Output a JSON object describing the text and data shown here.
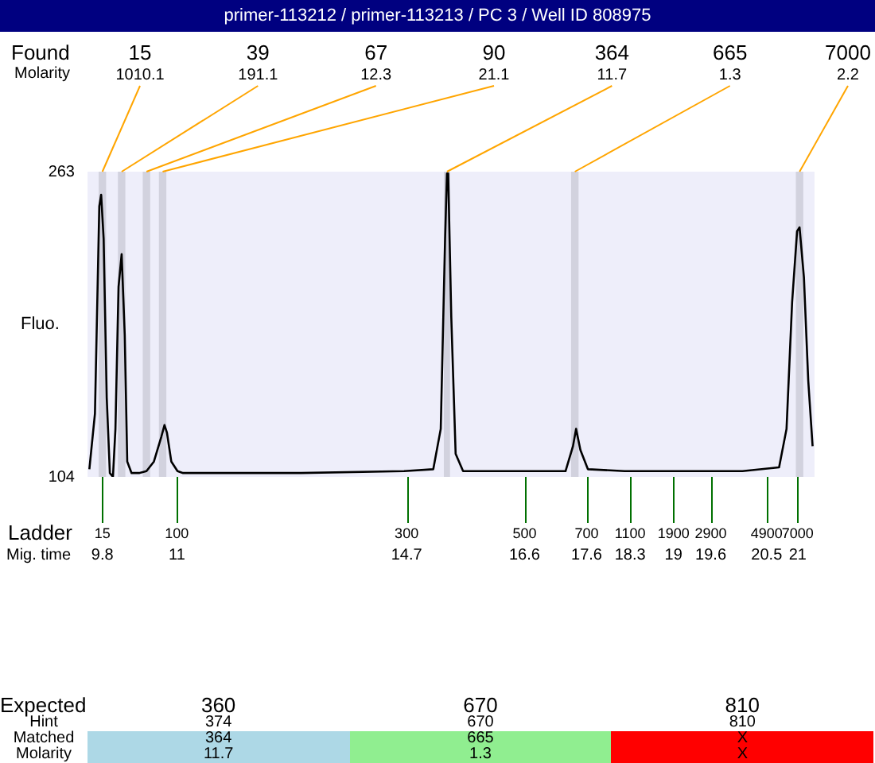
{
  "chart_data": [
    {
      "type": "line",
      "title": "primer-113212 / primer-113213 / PC 3 / Well ID 808975",
      "ylabel": "Fluo.",
      "xlabel": "Mig. time",
      "xlim": [
        9.56,
        21.27
      ],
      "xticks": [
        9.8,
        11,
        14.7,
        16.6,
        17.6,
        18.3,
        19,
        19.6,
        20.5,
        21
      ],
      "ylim": [
        104,
        263
      ],
      "yticks": [
        104,
        263
      ],
      "marker": "none",
      "series": [
        {
          "color": "#000000",
          "x": [
            9.59,
            9.68,
            9.75,
            9.78,
            9.82,
            9.87,
            9.92,
            9.97,
            10.01,
            10.06,
            10.11,
            10.16,
            10.2,
            10.27,
            10.39,
            10.51,
            10.63,
            10.75,
            10.8,
            10.84,
            10.91,
            11.01,
            11.1,
            11.58,
            13.0,
            14.66,
            15.13,
            15.25,
            15.32,
            15.35,
            15.37,
            15.42,
            15.49,
            15.61,
            16.55,
            17.26,
            17.38,
            17.43,
            17.5,
            17.62,
            18.21,
            20.11,
            20.7,
            20.82,
            20.91,
            20.99,
            21.03,
            21.1,
            21.17,
            21.24
          ],
          "values": [
            108,
            137,
            245,
            251,
            228,
            145,
            106,
            104,
            129,
            203,
            220,
            178,
            112,
            106,
            106,
            107,
            112,
            125,
            131,
            127,
            112,
            107,
            106,
            106,
            106,
            107,
            108,
            129,
            228,
            262,
            262,
            187,
            116,
            107,
            107,
            107,
            120,
            129,
            118,
            108,
            107,
            107,
            109,
            129,
            195,
            232,
            234,
            208,
            154,
            120
          ]
        }
      ],
      "bands": [
        {
          "axis": "x",
          "from": 9.74,
          "to": 9.86,
          "color": "#d2d2de"
        },
        {
          "axis": "x",
          "from": 10.05,
          "to": 10.17,
          "color": "#d2d2de"
        },
        {
          "axis": "x",
          "from": 10.45,
          "to": 10.57,
          "color": "#d2d2de"
        },
        {
          "axis": "x",
          "from": 10.71,
          "to": 10.83,
          "color": "#d2d2de"
        },
        {
          "axis": "x",
          "from": 15.3,
          "to": 15.4,
          "color": "#d2d2de"
        },
        {
          "axis": "x",
          "from": 17.35,
          "to": 17.47,
          "color": "#d2d2de"
        },
        {
          "axis": "x",
          "from": 20.97,
          "to": 21.09,
          "color": "#d2d2de"
        }
      ],
      "annotations": [
        "Found",
        "Molarity",
        "Ladder",
        "1010.1",
        "191.1",
        "12.3",
        "21.1",
        "11.7",
        "1.3",
        "2.2",
        {
          "text": "15",
          "x": 9.8,
          "y": 263
        },
        {
          "text": "39",
          "x": 10.11,
          "y": 263
        },
        {
          "text": "67",
          "x": 10.51,
          "y": 263
        },
        {
          "text": "90",
          "x": 10.77,
          "y": 263
        },
        {
          "text": "364",
          "x": 15.35,
          "y": 263
        },
        {
          "text": "665",
          "x": 17.41,
          "y": 263
        },
        {
          "text": "7000",
          "x": 21.03,
          "y": 263
        },
        {
          "text": "15",
          "x": 9.8,
          "y": 104
        },
        {
          "text": "100",
          "x": 11,
          "y": 104
        },
        {
          "text": "300",
          "x": 14.7,
          "y": 104
        },
        {
          "text": "500",
          "x": 16.6,
          "y": 104
        },
        {
          "text": "700",
          "x": 17.6,
          "y": 104
        },
        {
          "text": "1100",
          "x": 18.3,
          "y": 104
        },
        {
          "text": "1900",
          "x": 19,
          "y": 104
        },
        {
          "text": "2900",
          "x": 19.6,
          "y": 104
        },
        {
          "text": "4900",
          "x": 20.5,
          "y": 104
        },
        {
          "text": "7000",
          "x": 21,
          "y": 104
        }
      ]
    },
    {
      "type": "other",
      "colors": [
        "#add8e6",
        "#90ee90",
        "#ff0000"
      ],
      "annotations": [
        "Expected",
        "Hint",
        "Matched",
        "Molarity",
        "360",
        "374",
        "364",
        "11.7",
        "670",
        "670",
        "665",
        "1.3",
        "810",
        "810",
        "X",
        "X"
      ]
    }
  ]
}
